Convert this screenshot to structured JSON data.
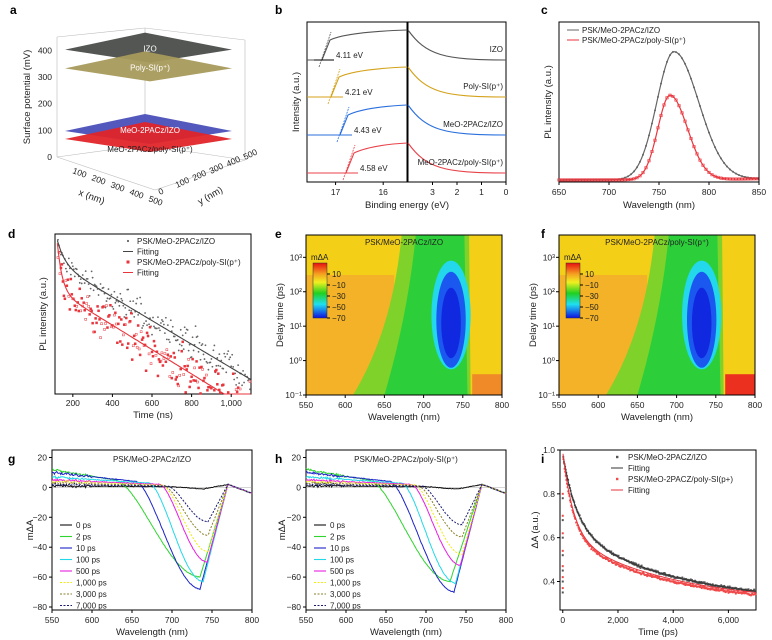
{
  "panels": {
    "a": {
      "label": "a"
    },
    "b": {
      "label": "b"
    },
    "c": {
      "label": "c"
    },
    "d": {
      "label": "d"
    },
    "e": {
      "label": "e"
    },
    "f": {
      "label": "f"
    },
    "g": {
      "label": "g"
    },
    "h": {
      "label": "h"
    },
    "i": {
      "label": "i"
    }
  },
  "chart_data": [
    {
      "id": "a",
      "type": "surface3d",
      "zlabel": "Surface potential (mV)",
      "xlabel": "x (nm)",
      "ylabel": "y (nm)",
      "zticks": [
        "0",
        "100",
        "200",
        "300",
        "400"
      ],
      "xticks": [
        "100",
        "200",
        "300",
        "400",
        "500"
      ],
      "yticks": [
        "0",
        "100",
        "200",
        "300",
        "400",
        "500"
      ],
      "zlim": [
        0,
        450
      ],
      "layers": [
        {
          "name": "IZO",
          "value": 410,
          "color": "#4a4d4a"
        },
        {
          "name": "Poly-SI(p⁺)",
          "value": 340,
          "color": "#a89a5c"
        },
        {
          "name": "MeO-2PACz/IZO",
          "value": 105,
          "color": "#4a4fb8"
        },
        {
          "name": "MeO-2PACz/poly-SI(p⁺)",
          "value": 75,
          "color": "#e0252a"
        }
      ]
    },
    {
      "id": "b",
      "type": "line",
      "ylabel": "Intensity (a.u.)",
      "xlabel": "Binding energy (eV)",
      "left_xticks": [
        "17",
        "16"
      ],
      "right_xticks": [
        "3",
        "2",
        "1",
        "0"
      ],
      "left_xlim": [
        17.6,
        15.5
      ],
      "right_xlim": [
        4,
        0
      ],
      "series": [
        {
          "name": "IZO",
          "color": "#555555",
          "cutoff_label": "4.11 eV"
        },
        {
          "name": "Poly-SI(p⁺)",
          "color": "#d4a21a",
          "cutoff_label": "4.21 eV"
        },
        {
          "name": "MeO-2PACz/IZO",
          "color": "#2a6fdd",
          "cutoff_label": "4.43 eV"
        },
        {
          "name": "MeO-2PACz/poly-SI(p⁺)",
          "color": "#e8424a",
          "cutoff_label": "4.58 eV"
        }
      ]
    },
    {
      "id": "c",
      "type": "line",
      "xlabel": "Wavelength (nm)",
      "ylabel": "PL intensity (a.u.)",
      "xlim": [
        650,
        850
      ],
      "xticks": [
        "650",
        "700",
        "750",
        "800",
        "850"
      ],
      "series": [
        {
          "name": "PSK/MeO-2PACz/IZO",
          "color": "#666666",
          "peak_x": 765,
          "peak_rel": 1.0,
          "width": 24
        },
        {
          "name": "PSK/MeO-2PACz/poly-SI(p⁺)",
          "color": "#e8353c",
          "peak_x": 761,
          "peak_rel": 0.66,
          "width": 17
        }
      ]
    },
    {
      "id": "d",
      "type": "scatter",
      "xlabel": "Time (ns)",
      "ylabel": "PL intensity (a.u.)",
      "xlim": [
        110,
        1100
      ],
      "xticks": [
        "200",
        "400",
        "600",
        "800",
        "1,000"
      ],
      "xtick_values": [
        200,
        400,
        600,
        800,
        1000
      ],
      "series": [
        {
          "name": "PSK/MeO-2PACz/IZO",
          "color": "#666666"
        },
        {
          "name": "Fitting",
          "color": "#444444"
        },
        {
          "name": "PSK/MeO-2PACz/poly-SI(p⁺)",
          "color": "#e8353c"
        },
        {
          "name": "Fitting",
          "color": "#e8353c"
        }
      ]
    },
    {
      "id": "e",
      "type": "heatmap",
      "title": "PSK/MeO-2PACz/IZO",
      "xlabel": "Wavelength (nm)",
      "ylabel": "Delay time (ps)",
      "xlim": [
        550,
        800
      ],
      "xticks": [
        "550",
        "600",
        "650",
        "700",
        "750",
        "800"
      ],
      "yticks": [
        "10⁻¹",
        "10⁰",
        "10¹",
        "10²",
        "10³"
      ],
      "colorbar_label": "mΔA",
      "colorbar_ticks": [
        "10",
        "−10",
        "−30",
        "−50",
        "−70"
      ],
      "min_bleach_wavelength": 735
    },
    {
      "id": "f",
      "type": "heatmap",
      "title": "PSK/MeO-2PACz/poly-SI(p⁺)",
      "xlabel": "Wavelength (nm)",
      "ylabel": "Delay time (ps)",
      "xlim": [
        550,
        800
      ],
      "xticks": [
        "550",
        "600",
        "650",
        "700",
        "750",
        "800"
      ],
      "yticks": [
        "10⁻¹",
        "10⁰",
        "10¹",
        "10²",
        "10³"
      ],
      "colorbar_label": "mΔA",
      "colorbar_ticks": [
        "10",
        "−10",
        "−30",
        "−50",
        "−70"
      ],
      "min_bleach_wavelength": 732
    },
    {
      "id": "g",
      "type": "line",
      "title": "PSK/MeO-2PACz/IZO",
      "xlabel": "Wavelength (nm)",
      "ylabel": "mΔA",
      "xlim": [
        550,
        800
      ],
      "ylim": [
        -82,
        25
      ],
      "xticks": [
        "550",
        "600",
        "650",
        "700",
        "750",
        "800"
      ],
      "yticks": [
        "20",
        "0",
        "−20",
        "−40",
        "−60",
        "−80"
      ],
      "ytick_values": [
        20,
        0,
        -20,
        -40,
        -60,
        -80
      ],
      "series": [
        {
          "name": "0 ps",
          "color": "#111111",
          "dash": false,
          "min": -1,
          "min_x": 740,
          "onset": 700
        },
        {
          "name": "2 ps",
          "color": "#2fd42f",
          "dash": false,
          "min": -60,
          "min_x": 735,
          "onset": 630
        },
        {
          "name": "10 ps",
          "color": "#1c24c8",
          "dash": false,
          "min": -68,
          "min_x": 735,
          "onset": 655
        },
        {
          "name": "100 ps",
          "color": "#21d8e8",
          "dash": false,
          "min": -63,
          "min_x": 739,
          "onset": 672
        },
        {
          "name": "500 ps",
          "color": "#e81ee0",
          "dash": false,
          "min": -50,
          "min_x": 744,
          "onset": 685
        },
        {
          "name": "1,000 ps",
          "color": "#f0ea10",
          "dash": true,
          "min": -43,
          "min_x": 745,
          "onset": 688
        },
        {
          "name": "3,000 ps",
          "color": "#8a8028",
          "dash": true,
          "min": -32,
          "min_x": 745,
          "onset": 690
        },
        {
          "name": "7,000 ps",
          "color": "#1a1a70",
          "dash": true,
          "min": -23,
          "min_x": 745,
          "onset": 695
        }
      ]
    },
    {
      "id": "h",
      "type": "line",
      "title": "PSK/MeO-2PACz/poly-SI(p⁺)",
      "xlabel": "Wavelength (nm)",
      "ylabel": "mΔA",
      "xlim": [
        550,
        800
      ],
      "ylim": [
        -82,
        25
      ],
      "xticks": [
        "550",
        "600",
        "650",
        "700",
        "750",
        "800"
      ],
      "yticks": [
        "20",
        "0",
        "−20",
        "−40",
        "−60",
        "−80"
      ],
      "ytick_values": [
        20,
        0,
        -20,
        -40,
        -60,
        -80
      ],
      "series": [
        {
          "name": "0 ps",
          "color": "#111111",
          "dash": false,
          "min": -1,
          "min_x": 740,
          "onset": 700
        },
        {
          "name": "2 ps",
          "color": "#2fd42f",
          "dash": false,
          "min": -63,
          "min_x": 730,
          "onset": 630
        },
        {
          "name": "10 ps",
          "color": "#1c24c8",
          "dash": false,
          "min": -70,
          "min_x": 735,
          "onset": 655
        },
        {
          "name": "100 ps",
          "color": "#21d8e8",
          "dash": false,
          "min": -64,
          "min_x": 737,
          "onset": 670
        },
        {
          "name": "500 ps",
          "color": "#e81ee0",
          "dash": false,
          "min": -52,
          "min_x": 743,
          "onset": 682
        },
        {
          "name": "1,000 ps",
          "color": "#f0ea10",
          "dash": true,
          "min": -45,
          "min_x": 745,
          "onset": 686
        },
        {
          "name": "3,000 ps",
          "color": "#8a8028",
          "dash": true,
          "min": -33,
          "min_x": 745,
          "onset": 690
        },
        {
          "name": "7,000 ps",
          "color": "#1a1a70",
          "dash": true,
          "min": -25,
          "min_x": 745,
          "onset": 695
        }
      ]
    },
    {
      "id": "i",
      "type": "scatter",
      "xlabel": "Time (ps)",
      "ylabel": "ΔA (a.u.)",
      "xlim": [
        -100,
        7000
      ],
      "ylim": [
        0.27,
        1.0
      ],
      "xticks": [
        "0",
        "2,000",
        "4,000",
        "6,000"
      ],
      "xtick_values": [
        0,
        2000,
        4000,
        6000
      ],
      "yticks": [
        "1.0",
        "0.8",
        "0.6",
        "0.4"
      ],
      "ytick_values": [
        1.0,
        0.8,
        0.6,
        0.4
      ],
      "series": [
        {
          "name": "PSK/MeO-2PACZ/IZO",
          "color": "#555555"
        },
        {
          "name": "Fitting",
          "color": "#333333"
        },
        {
          "name": "PSK/MeO-2PACZ/poly-SI(p+)",
          "color": "#f04a4a"
        },
        {
          "name": "Fitting",
          "color": "#e8353c"
        }
      ]
    }
  ]
}
